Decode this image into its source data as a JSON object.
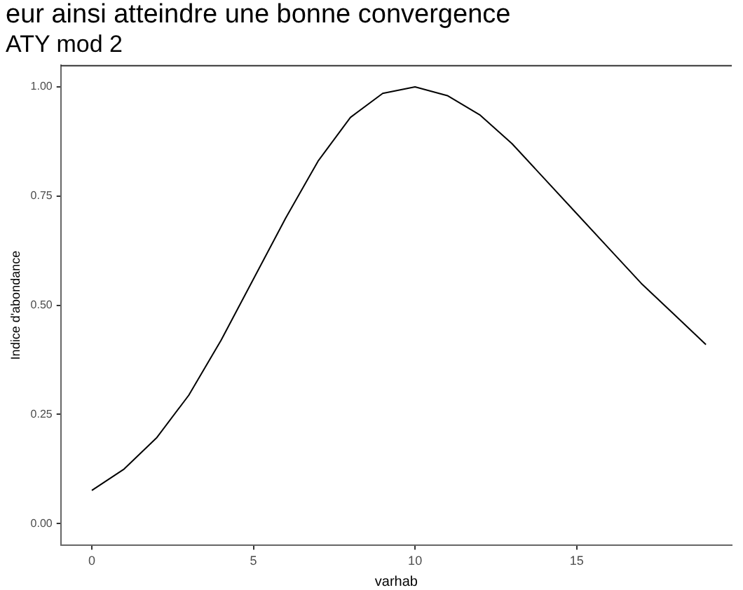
{
  "chart_data": {
    "type": "line",
    "title": "ATY mod 2",
    "xlabel": "varhab",
    "ylabel": "Indice d'abondance",
    "annotations": [
      "eur ainsi atteindre une bonne convergence"
    ],
    "x": [
      0,
      1,
      2,
      3,
      4,
      5,
      6,
      7,
      8,
      9,
      10,
      11,
      12,
      13,
      14,
      15,
      16,
      17,
      18,
      19
    ],
    "series": [
      {
        "color": "#000000",
        "values": [
          0.076,
          0.125,
          0.196,
          0.294,
          0.42,
          0.56,
          0.7,
          0.83,
          0.93,
          0.985,
          1.0,
          0.98,
          0.936,
          0.87,
          0.79,
          0.71,
          0.63,
          0.55,
          0.48,
          0.41
        ]
      }
    ],
    "xlim": [
      -0.96,
      19.8
    ],
    "xticks": [
      0,
      5,
      10,
      15
    ],
    "ylim": [
      -0.05,
      1.05
    ],
    "yticks": [
      {
        "value": 0,
        "label": "0.00"
      },
      {
        "value": 0.25,
        "label": "0.25"
      },
      {
        "value": 0.5,
        "label": "0.50"
      },
      {
        "value": 0.75,
        "label": "0.75"
      },
      {
        "value": 1,
        "label": "1.00"
      }
    ],
    "grid": false,
    "legend": false,
    "marker": "none",
    "line_style": "solid"
  }
}
